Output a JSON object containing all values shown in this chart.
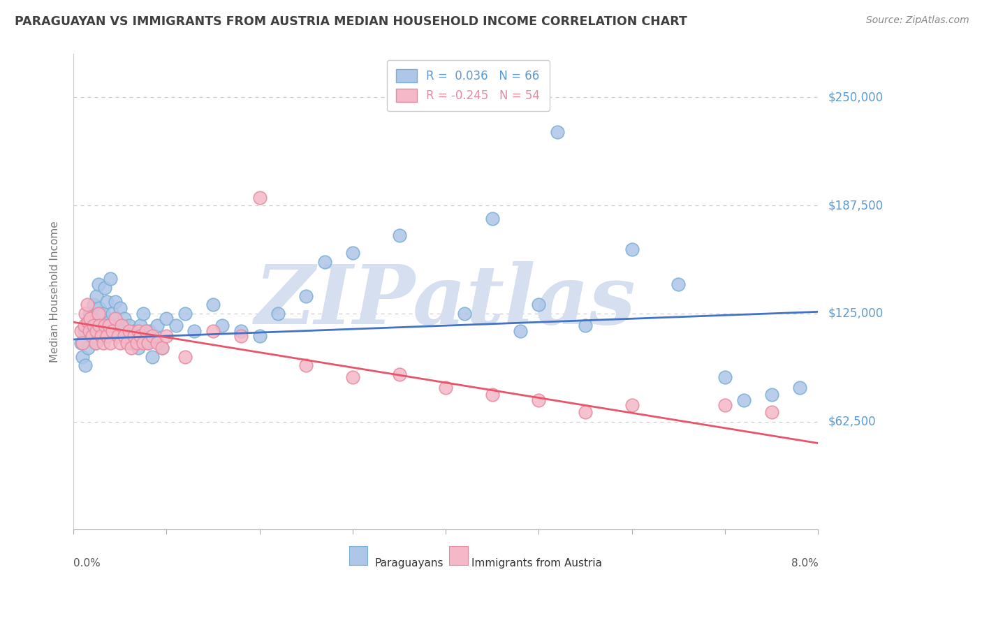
{
  "title": "PARAGUAYAN VS IMMIGRANTS FROM AUSTRIA MEDIAN HOUSEHOLD INCOME CORRELATION CHART",
  "source": "Source: ZipAtlas.com",
  "ylabel": "Median Household Income",
  "yticks": [
    0,
    62500,
    125000,
    187500,
    250000
  ],
  "ytick_labels": [
    "",
    "$62,500",
    "$125,000",
    "$187,500",
    "$250,000"
  ],
  "xlim": [
    0.0,
    8.0
  ],
  "ylim": [
    0,
    275000
  ],
  "blue_R": 0.036,
  "blue_N": 66,
  "pink_R": -0.245,
  "pink_N": 54,
  "blue_dot_color": "#aec6e8",
  "pink_dot_color": "#f4b8c8",
  "blue_edge_color": "#7aafd4",
  "pink_edge_color": "#e88aa0",
  "blue_line_color": "#4472c4",
  "pink_line_color": "#e8556a",
  "watermark": "ZIPatlas",
  "watermark_color": "#d5dff0",
  "title_color": "#404040",
  "source_color": "#888888",
  "axis_tick_color": "#5b9bd5",
  "legend_label1": "Paraguayans",
  "legend_label2": "Immigrants from Austria",
  "blue_line_y0": 110000,
  "blue_line_y1": 126000,
  "pink_line_y0": 120000,
  "pink_line_y1": 50000,
  "blue_x": [
    0.08,
    0.1,
    0.12,
    0.13,
    0.15,
    0.16,
    0.17,
    0.18,
    0.2,
    0.22,
    0.24,
    0.25,
    0.27,
    0.28,
    0.3,
    0.32,
    0.34,
    0.36,
    0.38,
    0.4,
    0.42,
    0.45,
    0.48,
    0.5,
    0.52,
    0.55,
    0.58,
    0.6,
    0.62,
    0.65,
    0.68,
    0.7,
    0.72,
    0.75,
    0.78,
    0.8,
    0.82,
    0.85,
    0.88,
    0.9,
    0.95,
    1.0,
    1.1,
    1.2,
    1.3,
    1.5,
    1.6,
    1.8,
    2.0,
    2.2,
    2.5,
    2.7,
    3.0,
    3.5,
    4.2,
    4.8,
    5.0,
    5.2,
    5.5,
    6.0,
    6.5,
    7.0,
    7.2,
    7.5,
    4.5,
    7.8
  ],
  "blue_y": [
    108000,
    100000,
    115000,
    95000,
    120000,
    105000,
    125000,
    112000,
    118000,
    130000,
    108000,
    135000,
    142000,
    128000,
    118000,
    125000,
    140000,
    132000,
    120000,
    145000,
    125000,
    132000,
    115000,
    128000,
    118000,
    122000,
    112000,
    118000,
    108000,
    115000,
    112000,
    105000,
    118000,
    125000,
    112000,
    108000,
    115000,
    100000,
    112000,
    118000,
    105000,
    122000,
    118000,
    125000,
    115000,
    130000,
    118000,
    115000,
    112000,
    125000,
    135000,
    155000,
    160000,
    170000,
    125000,
    115000,
    130000,
    230000,
    118000,
    162000,
    142000,
    88000,
    75000,
    78000,
    180000,
    82000
  ],
  "pink_x": [
    0.08,
    0.1,
    0.12,
    0.13,
    0.15,
    0.16,
    0.17,
    0.18,
    0.2,
    0.22,
    0.24,
    0.25,
    0.27,
    0.28,
    0.3,
    0.32,
    0.34,
    0.36,
    0.38,
    0.4,
    0.42,
    0.45,
    0.48,
    0.5,
    0.52,
    0.55,
    0.58,
    0.6,
    0.62,
    0.65,
    0.68,
    0.7,
    0.72,
    0.75,
    0.78,
    0.8,
    0.85,
    0.9,
    0.95,
    1.0,
    1.2,
    1.5,
    1.8,
    2.0,
    2.5,
    3.0,
    3.5,
    4.0,
    4.5,
    5.0,
    5.5,
    6.0,
    7.0,
    7.5
  ],
  "pink_y": [
    115000,
    108000,
    118000,
    125000,
    130000,
    120000,
    115000,
    122000,
    112000,
    118000,
    108000,
    115000,
    125000,
    118000,
    112000,
    108000,
    118000,
    112000,
    118000,
    108000,
    115000,
    122000,
    112000,
    108000,
    118000,
    112000,
    108000,
    115000,
    105000,
    112000,
    108000,
    115000,
    112000,
    108000,
    115000,
    108000,
    112000,
    108000,
    105000,
    112000,
    100000,
    115000,
    112000,
    192000,
    95000,
    88000,
    90000,
    82000,
    78000,
    75000,
    68000,
    72000,
    72000,
    68000
  ]
}
